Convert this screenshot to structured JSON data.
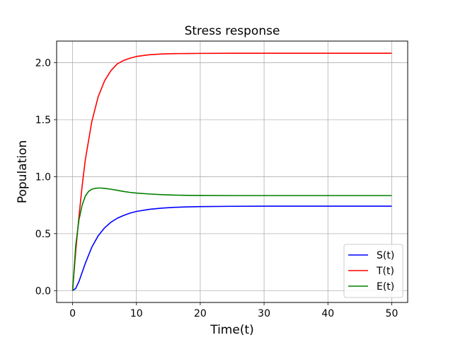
{
  "chart_data": {
    "type": "line",
    "title": "Stress response",
    "xlabel": "Time(t)",
    "ylabel": "Population",
    "xlim": [
      -2.5,
      52.5
    ],
    "ylim": [
      -0.104,
      2.19
    ],
    "xticks": [
      0,
      10,
      20,
      30,
      40,
      50
    ],
    "xtick_labels": [
      "0",
      "10",
      "20",
      "30",
      "40",
      "50"
    ],
    "yticks": [
      0.0,
      0.5,
      1.0,
      1.5,
      2.0
    ],
    "ytick_labels": [
      "0.0",
      "0.5",
      "1.0",
      "1.5",
      "2.0"
    ],
    "grid": true,
    "legend_position": "lower-right",
    "series": [
      {
        "name": "S(t)",
        "color": "#0000ff",
        "x": [
          0,
          0.5,
          1,
          1.5,
          2,
          3,
          4,
          5,
          6,
          7,
          8,
          9,
          10,
          12,
          14,
          16,
          18,
          20,
          25,
          30,
          35,
          40,
          45,
          50
        ],
        "y": [
          0.0,
          0.02,
          0.08,
          0.16,
          0.24,
          0.38,
          0.48,
          0.55,
          0.6,
          0.635,
          0.66,
          0.68,
          0.695,
          0.713,
          0.724,
          0.731,
          0.735,
          0.737,
          0.74,
          0.741,
          0.741,
          0.741,
          0.741,
          0.741
        ]
      },
      {
        "name": "T(t)",
        "color": "#ff0000",
        "x": [
          0,
          0.5,
          1,
          1.5,
          2,
          3,
          4,
          5,
          6,
          7,
          8,
          9,
          10,
          12,
          14,
          16,
          18,
          20,
          25,
          30,
          35,
          40,
          45,
          50
        ],
        "y": [
          0.0,
          0.35,
          0.65,
          0.92,
          1.15,
          1.48,
          1.7,
          1.84,
          1.93,
          1.99,
          2.02,
          2.04,
          2.055,
          2.07,
          2.077,
          2.08,
          2.081,
          2.082,
          2.083,
          2.083,
          2.083,
          2.083,
          2.083,
          2.083
        ]
      },
      {
        "name": "E(t)",
        "color": "#008000",
        "x": [
          0,
          0.5,
          1,
          1.5,
          2,
          2.5,
          3,
          3.5,
          4,
          4.5,
          5,
          6,
          7,
          8,
          9,
          10,
          12,
          14,
          16,
          18,
          20,
          25,
          30,
          35,
          40,
          45,
          50
        ],
        "y": [
          0.0,
          0.4,
          0.62,
          0.75,
          0.83,
          0.87,
          0.89,
          0.897,
          0.9,
          0.9,
          0.897,
          0.89,
          0.88,
          0.87,
          0.862,
          0.856,
          0.848,
          0.842,
          0.838,
          0.836,
          0.835,
          0.834,
          0.834,
          0.834,
          0.834,
          0.834,
          0.834
        ]
      }
    ]
  }
}
